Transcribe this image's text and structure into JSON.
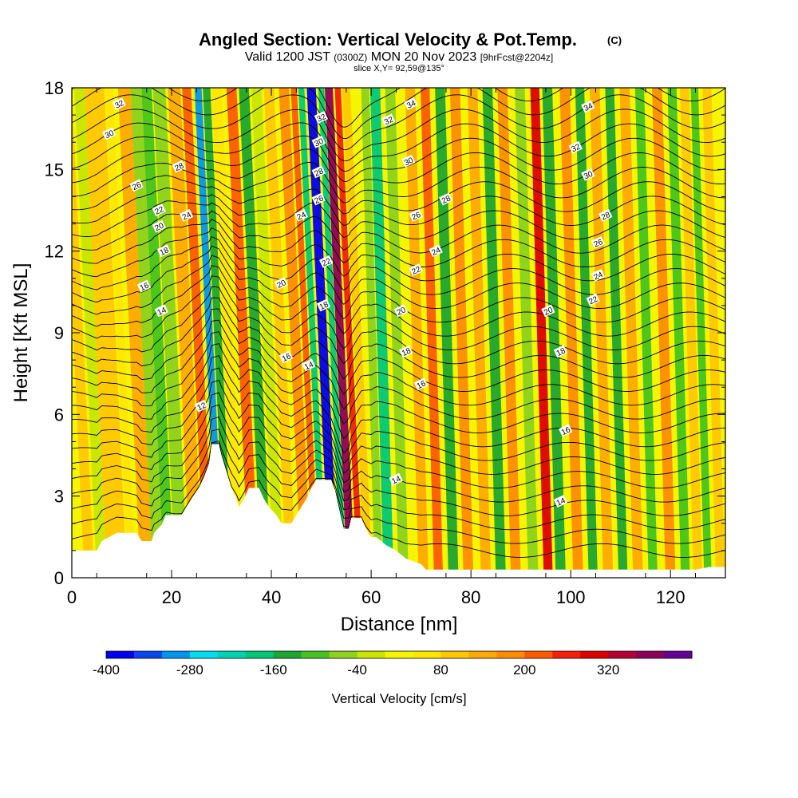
{
  "header": {
    "title": "Angled Section: Vertical Velocity & Pot.Temp.",
    "title_mark": "(C)",
    "valid_line_a": "Valid 1200 JST",
    "valid_line_b": "(0300Z)",
    "valid_line_c": "MON 20 Nov 2023",
    "valid_line_d": "[9hrFcst@2204z]",
    "slice_line": "slice X,Y= 92,59@135°"
  },
  "chart_data": {
    "type": "heatmap",
    "title": "Angled Section: Vertical Velocity & Pot.Temp.",
    "xlabel": "Distance [nm]",
    "ylabel": "Height [Kft MSL]",
    "xlim": [
      0,
      131
    ],
    "ylim": [
      0,
      18
    ],
    "x_ticks": [
      "0",
      "20",
      "40",
      "60",
      "80",
      "100",
      "120"
    ],
    "y_ticks": [
      "0",
      "3",
      "6",
      "9",
      "12",
      "15",
      "18"
    ],
    "colorbar": {
      "label": "Vertical Velocity [cm/s]",
      "tick_labels": [
        "-400",
        "-280",
        "-160",
        "-40",
        "80",
        "200",
        "320"
      ],
      "levels": [
        -400,
        -360,
        -320,
        -280,
        -240,
        -200,
        -160,
        -120,
        -80,
        -40,
        0,
        40,
        80,
        120,
        160,
        200,
        240,
        280,
        320,
        360,
        400
      ],
      "colors": [
        "#0000ee",
        "#0a46f0",
        "#0096f0",
        "#00dcf0",
        "#00d2b4",
        "#00c878",
        "#1ea532",
        "#46c31e",
        "#8cd21e",
        "#c8e600",
        "#f5f500",
        "#ffe600",
        "#ffc800",
        "#ffaa00",
        "#ff8c00",
        "#ff5a00",
        "#f51e0a",
        "#dc0000",
        "#b40032",
        "#8c005a",
        "#640096"
      ]
    },
    "terrain_kft": [
      [
        0,
        1.0
      ],
      [
        5,
        1.0
      ],
      [
        6,
        1.35
      ],
      [
        9,
        1.65
      ],
      [
        13,
        1.65
      ],
      [
        14,
        1.35
      ],
      [
        16,
        1.35
      ],
      [
        16.5,
        1.65
      ],
      [
        18,
        1.95
      ],
      [
        18.8,
        2.3
      ],
      [
        22,
        2.3
      ],
      [
        23,
        2.6
      ],
      [
        24,
        2.9
      ],
      [
        25.5,
        3.3
      ],
      [
        26.5,
        3.7
      ],
      [
        27.5,
        4.2
      ],
      [
        28,
        4.9
      ],
      [
        29.5,
        4.9
      ],
      [
        30,
        4.5
      ],
      [
        31,
        3.9
      ],
      [
        32,
        3.3
      ],
      [
        33,
        2.9
      ],
      [
        33.5,
        2.6
      ],
      [
        34.5,
        2.9
      ],
      [
        35.5,
        3.3
      ],
      [
        37.5,
        3.3
      ],
      [
        38.5,
        2.9
      ],
      [
        39.5,
        2.6
      ],
      [
        41,
        2.3
      ],
      [
        42,
        2.0
      ],
      [
        44,
        2.0
      ],
      [
        45,
        2.3
      ],
      [
        46,
        2.6
      ],
      [
        47,
        2.9
      ],
      [
        48,
        3.3
      ],
      [
        49,
        3.6
      ],
      [
        52,
        3.6
      ],
      [
        52.8,
        3.2
      ],
      [
        53.5,
        2.6
      ],
      [
        54.5,
        1.8
      ],
      [
        55.5,
        1.8
      ],
      [
        56,
        2.2
      ],
      [
        58,
        2.2
      ],
      [
        59,
        1.8
      ],
      [
        60,
        1.5
      ],
      [
        61,
        1.5
      ],
      [
        63,
        1.2
      ],
      [
        65,
        1.0
      ],
      [
        67,
        0.7
      ],
      [
        70,
        0.5
      ],
      [
        71,
        0.3
      ],
      [
        110,
        0.3
      ],
      [
        125,
        0.3
      ],
      [
        128,
        0.4
      ],
      [
        131,
        0.4
      ]
    ],
    "vertical_velocity_bands": [
      {
        "x": 3.5,
        "w": 2,
        "w_cm_s": 90
      },
      {
        "x": 6,
        "w": 2,
        "w_cm_s": -20
      },
      {
        "x": 9,
        "w": 4,
        "w_cm_s": 110
      },
      {
        "x": 12,
        "w": 1.5,
        "w_cm_s": 60
      },
      {
        "x": 15,
        "w": 2.5,
        "w_cm_s": 150
      },
      {
        "x": 17.5,
        "w": 2.5,
        "w_cm_s": -60
      },
      {
        "x": 19.5,
        "w": 2,
        "w_cm_s": -110
      },
      {
        "x": 22,
        "w": 2.5,
        "w_cm_s": -50
      },
      {
        "x": 25,
        "w": 2.5,
        "w_cm_s": 140
      },
      {
        "x": 27.5,
        "w": 1.8,
        "w_cm_s": 230
      },
      {
        "x": 29.8,
        "w": 1.4,
        "w_cm_s": -300
      },
      {
        "x": 31.5,
        "w": 1.5,
        "w_cm_s": -150
      },
      {
        "x": 33.5,
        "w": 2,
        "w_cm_s": 60
      },
      {
        "x": 36.5,
        "w": 2,
        "w_cm_s": 200
      },
      {
        "x": 39,
        "w": 2,
        "w_cm_s": -130
      },
      {
        "x": 41.5,
        "w": 2,
        "w_cm_s": -30
      },
      {
        "x": 44,
        "w": 2,
        "w_cm_s": 80
      },
      {
        "x": 47,
        "w": 2,
        "w_cm_s": 160
      },
      {
        "x": 49,
        "w": 1.2,
        "w_cm_s": 230
      },
      {
        "x": 50.5,
        "w": 1.2,
        "w_cm_s": -200
      },
      {
        "x": 52.5,
        "w": 1.8,
        "w_cm_s": -390
      },
      {
        "x": 54.5,
        "w": 1.2,
        "w_cm_s": -200
      },
      {
        "x": 56,
        "w": 1.6,
        "w_cm_s": 380
      },
      {
        "x": 57.8,
        "w": 1.2,
        "w_cm_s": 250
      },
      {
        "x": 59.5,
        "w": 1.6,
        "w_cm_s": 80
      },
      {
        "x": 61.5,
        "w": 1.6,
        "w_cm_s": -60
      },
      {
        "x": 63.5,
        "w": 2,
        "w_cm_s": -170
      },
      {
        "x": 66.5,
        "w": 2,
        "w_cm_s": -60
      },
      {
        "x": 70.5,
        "w": 2,
        "w_cm_s": 140
      },
      {
        "x": 73.5,
        "w": 1.8,
        "w_cm_s": 230
      },
      {
        "x": 76.5,
        "w": 2,
        "w_cm_s": -130
      },
      {
        "x": 79.5,
        "w": 2,
        "w_cm_s": 170
      },
      {
        "x": 83,
        "w": 2,
        "w_cm_s": 120
      },
      {
        "x": 86,
        "w": 2,
        "w_cm_s": -150
      },
      {
        "x": 89,
        "w": 2,
        "w_cm_s": 170
      },
      {
        "x": 92.5,
        "w": 2,
        "w_cm_s": -80
      },
      {
        "x": 95.5,
        "w": 1.8,
        "w_cm_s": 280
      },
      {
        "x": 98,
        "w": 2,
        "w_cm_s": -140
      },
      {
        "x": 101.5,
        "w": 2,
        "w_cm_s": 180
      },
      {
        "x": 104.5,
        "w": 1.8,
        "w_cm_s": -150
      },
      {
        "x": 107.5,
        "w": 2,
        "w_cm_s": 140
      },
      {
        "x": 110.5,
        "w": 1.8,
        "w_cm_s": -150
      },
      {
        "x": 113.5,
        "w": 2,
        "w_cm_s": 120
      },
      {
        "x": 116.5,
        "w": 1.8,
        "w_cm_s": -120
      },
      {
        "x": 120,
        "w": 2,
        "w_cm_s": 160
      },
      {
        "x": 123,
        "w": 1.8,
        "w_cm_s": -120
      },
      {
        "x": 125.5,
        "w": 1.8,
        "w_cm_s": 110
      },
      {
        "x": 127.5,
        "w": 1.5,
        "w_cm_s": -100
      },
      {
        "x": 130,
        "w": 1.8,
        "w_cm_s": 110
      }
    ],
    "theta_contour_labels": [
      {
        "x": 9.5,
        "y": 17.4,
        "text": "32"
      },
      {
        "x": 7.5,
        "y": 16.3,
        "text": "30"
      },
      {
        "x": 21.5,
        "y": 15.1,
        "text": "28"
      },
      {
        "x": 13,
        "y": 14.4,
        "text": "26"
      },
      {
        "x": 17.5,
        "y": 13.5,
        "text": "22"
      },
      {
        "x": 23,
        "y": 13.3,
        "text": "24"
      },
      {
        "x": 17.5,
        "y": 12.9,
        "text": "20"
      },
      {
        "x": 18.5,
        "y": 12.0,
        "text": "18"
      },
      {
        "x": 14.5,
        "y": 10.7,
        "text": "16"
      },
      {
        "x": 18,
        "y": 9.8,
        "text": "14"
      },
      {
        "x": 26,
        "y": 6.3,
        "text": "12"
      },
      {
        "x": 42,
        "y": 10.8,
        "text": "20"
      },
      {
        "x": 46,
        "y": 13.3,
        "text": "24"
      },
      {
        "x": 43,
        "y": 8.1,
        "text": "16"
      },
      {
        "x": 47.5,
        "y": 7.8,
        "text": "14"
      },
      {
        "x": 50,
        "y": 16.9,
        "text": "32"
      },
      {
        "x": 49.5,
        "y": 16.0,
        "text": "30"
      },
      {
        "x": 49.5,
        "y": 14.9,
        "text": "28"
      },
      {
        "x": 49.5,
        "y": 13.9,
        "text": "26"
      },
      {
        "x": 51,
        "y": 11.6,
        "text": "22"
      },
      {
        "x": 50.5,
        "y": 10.0,
        "text": "18"
      },
      {
        "x": 68,
        "y": 17.4,
        "text": "34"
      },
      {
        "x": 63.5,
        "y": 16.8,
        "text": "32"
      },
      {
        "x": 67.5,
        "y": 15.3,
        "text": "30"
      },
      {
        "x": 75,
        "y": 13.9,
        "text": "28"
      },
      {
        "x": 69,
        "y": 13.3,
        "text": "26"
      },
      {
        "x": 73,
        "y": 12.0,
        "text": "24"
      },
      {
        "x": 69,
        "y": 11.3,
        "text": "22"
      },
      {
        "x": 66,
        "y": 9.8,
        "text": "20"
      },
      {
        "x": 67,
        "y": 8.3,
        "text": "18"
      },
      {
        "x": 70,
        "y": 7.1,
        "text": "16"
      },
      {
        "x": 65,
        "y": 3.6,
        "text": "14"
      },
      {
        "x": 103.5,
        "y": 17.3,
        "text": "34"
      },
      {
        "x": 101,
        "y": 15.8,
        "text": "32"
      },
      {
        "x": 103.5,
        "y": 14.8,
        "text": "30"
      },
      {
        "x": 107,
        "y": 13.3,
        "text": "28"
      },
      {
        "x": 105.5,
        "y": 12.3,
        "text": "26"
      },
      {
        "x": 105.5,
        "y": 11.1,
        "text": "24"
      },
      {
        "x": 104.5,
        "y": 10.2,
        "text": "22"
      },
      {
        "x": 95.5,
        "y": 9.8,
        "text": "20"
      },
      {
        "x": 98,
        "y": 8.3,
        "text": "18"
      },
      {
        "x": 99,
        "y": 5.4,
        "text": "16"
      },
      {
        "x": 98,
        "y": 2.8,
        "text": "14"
      }
    ]
  }
}
